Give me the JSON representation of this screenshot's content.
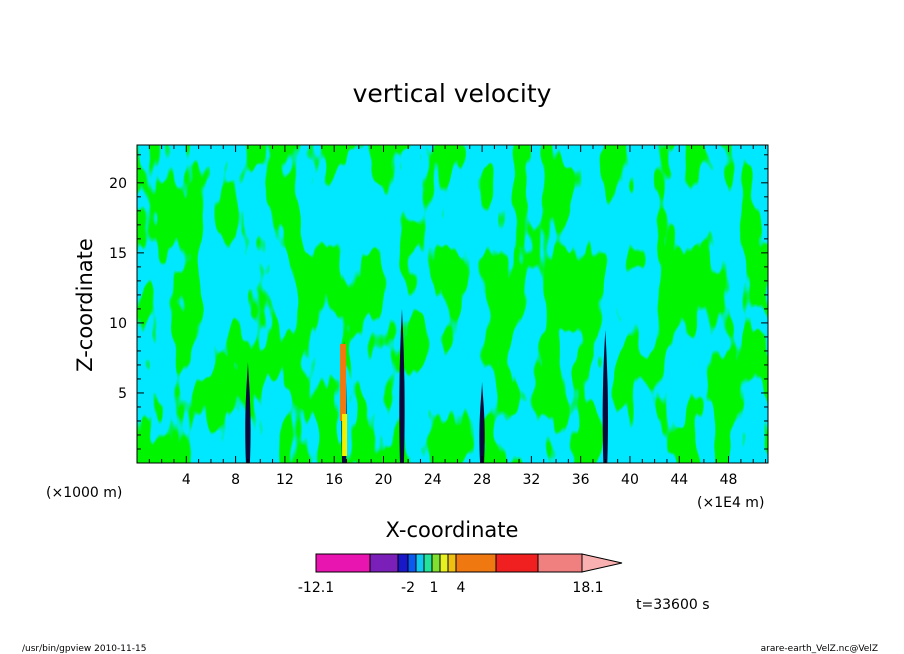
{
  "chart_data": {
    "type": "heatmap",
    "title": "vertical velocity",
    "xlabel": "X-coordinate",
    "ylabel": "Z-coordinate",
    "x_unit_note": "(×1000 m)",
    "x_scale_note": "(×1E4 m)",
    "xlim": [
      0,
      51.2
    ],
    "ylim": [
      0,
      22.7
    ],
    "x_ticks": [
      4,
      8,
      12,
      16,
      20,
      24,
      28,
      32,
      36,
      40,
      44,
      48
    ],
    "y_ticks": [
      5,
      10,
      15,
      20
    ],
    "color_levels": [
      "#e815b0",
      "#7a1fb7",
      "#1818c8",
      "#0a5af0",
      "#10c8f0",
      "#22e29c",
      "#7fe030",
      "#e8f020",
      "#f0c010",
      "#f07810",
      "#f02020",
      "#f08080"
    ],
    "dominant_colors": {
      "negative_weak": "#00e8ff",
      "positive_weak": "#00e800",
      "updraft_core": "#f0f000",
      "updraft_orange": "#f07810"
    },
    "colorbar": {
      "min_label": "-12.1",
      "max_label": "18.1",
      "mid_labels": [
        "-2",
        "1",
        "4"
      ],
      "has_upper_extension": true
    },
    "updraft_columns_x": [
      9.0,
      16.8,
      21.5,
      28.0,
      38.0
    ],
    "time_label": "t=33600 s"
  },
  "footer": {
    "left": "/usr/bin/gpview  2010-11-15",
    "right": "arare-earth_VelZ.nc@VelZ"
  }
}
